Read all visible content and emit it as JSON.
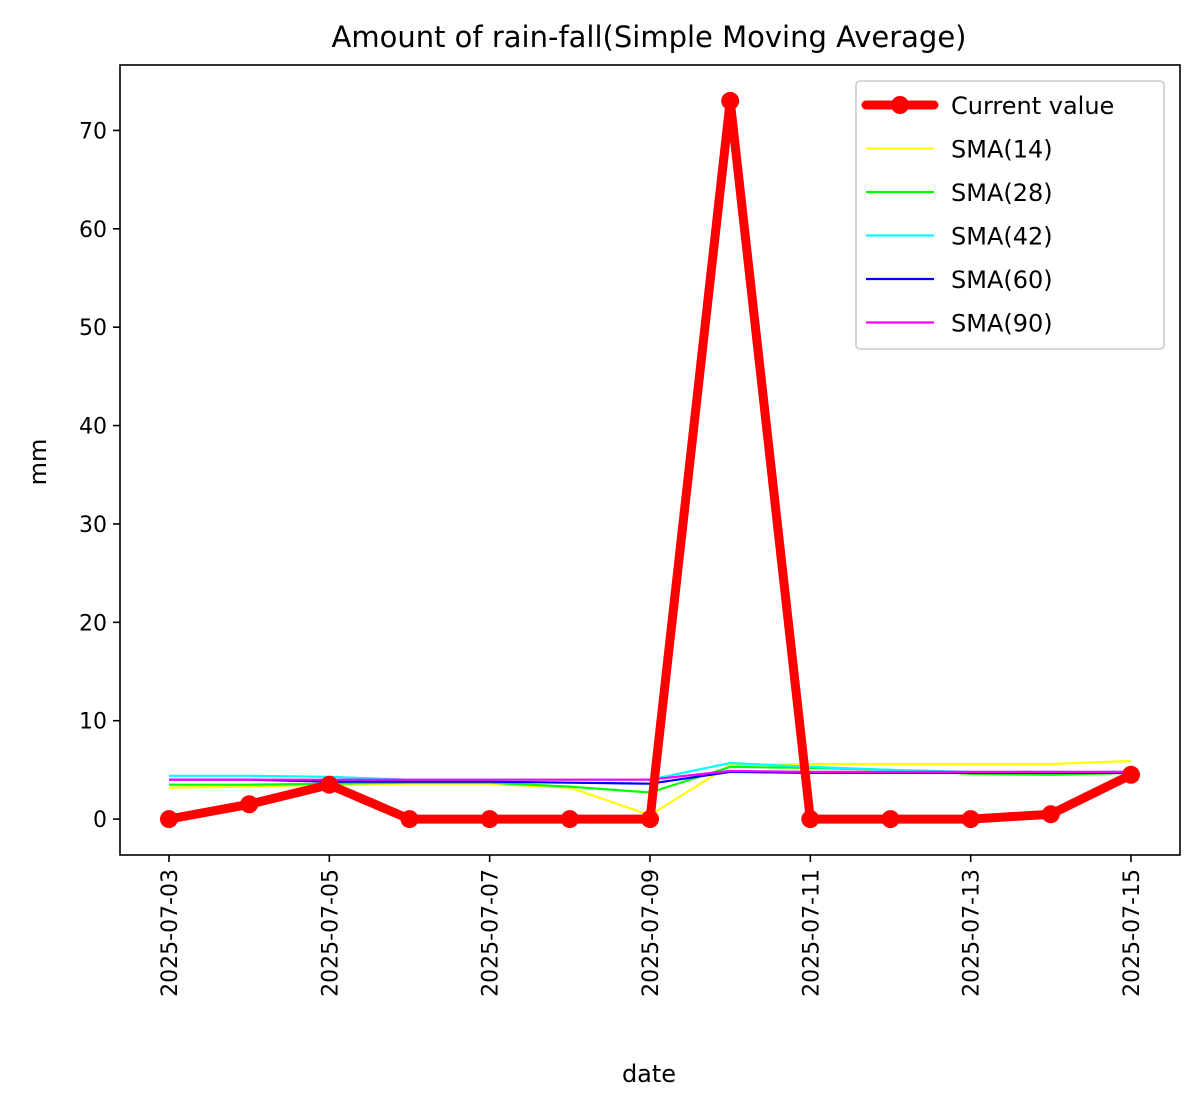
{
  "chart_data": {
    "type": "line",
    "title": "Amount of rain-fall(Simple Moving Average)",
    "xlabel": "date",
    "ylabel": "mm",
    "x": [
      "2025-07-03",
      "2025-07-04",
      "2025-07-05",
      "2025-07-06",
      "2025-07-07",
      "2025-07-08",
      "2025-07-09",
      "2025-07-10",
      "2025-07-11",
      "2025-07-12",
      "2025-07-13",
      "2025-07-14",
      "2025-07-15"
    ],
    "xtick_labels": [
      "2025-07-03",
      "2025-07-05",
      "2025-07-07",
      "2025-07-09",
      "2025-07-11",
      "2025-07-13",
      "2025-07-15"
    ],
    "ylim": [
      -3.65,
      76.65
    ],
    "yticks": [
      0,
      10,
      20,
      30,
      40,
      50,
      60,
      70
    ],
    "legend_position": "top-right",
    "grid": false,
    "series": [
      {
        "name": "Current value",
        "color": "#ff0000",
        "style": "thick line with circle markers",
        "values": [
          0.0,
          1.5,
          3.5,
          0.0,
          0.0,
          0.0,
          0.0,
          73.0,
          0.0,
          0.0,
          0.0,
          0.5,
          4.5
        ]
      },
      {
        "name": "SMA(14)",
        "color": "#ffff00",
        "values": [
          3.2,
          3.3,
          3.5,
          3.6,
          3.6,
          3.2,
          0.4,
          5.5,
          5.6,
          5.6,
          5.6,
          5.6,
          5.9
        ]
      },
      {
        "name": "SMA(28)",
        "color": "#00ff00",
        "values": [
          3.5,
          3.5,
          3.6,
          3.7,
          3.7,
          3.3,
          2.7,
          5.3,
          5.2,
          5.0,
          4.6,
          4.5,
          4.7
        ]
      },
      {
        "name": "SMA(42)",
        "color": "#00ffff",
        "values": [
          4.4,
          4.4,
          4.3,
          4.0,
          4.0,
          4.0,
          4.0,
          5.7,
          5.3,
          5.0,
          4.8,
          4.8,
          4.8
        ]
      },
      {
        "name": "SMA(60)",
        "color": "#0000ff",
        "values": [
          4.0,
          4.0,
          3.8,
          3.8,
          3.8,
          3.7,
          3.6,
          4.8,
          4.7,
          4.7,
          4.7,
          4.7,
          4.7
        ]
      },
      {
        "name": "SMA(90)",
        "color": "#ff00ff",
        "values": [
          4.0,
          4.0,
          4.0,
          4.0,
          4.0,
          4.0,
          4.0,
          4.9,
          4.8,
          4.8,
          4.8,
          4.8,
          4.8
        ]
      }
    ]
  }
}
